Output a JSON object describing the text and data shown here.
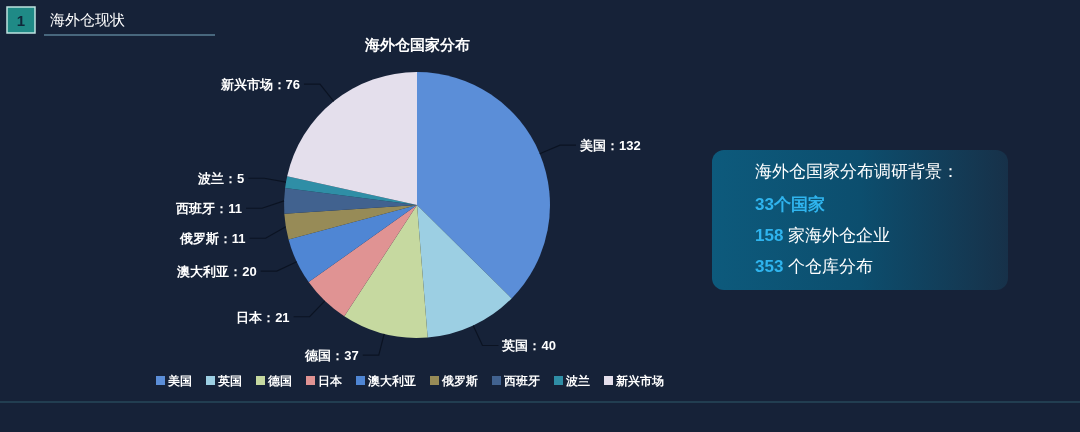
{
  "chart_data": [
    {
      "type": "pie",
      "title": "海外仓国家分布",
      "annotations": [
        "1",
        "海外仓现状"
      ],
      "categories": [
        "美国",
        "英国",
        "德国",
        "日本",
        "澳大利亚",
        "俄罗斯",
        "西班牙",
        "波兰",
        "新兴市场"
      ],
      "values": [
        132,
        40,
        37,
        21,
        20,
        11,
        11,
        5,
        76
      ],
      "colors": [
        "#5b8ed8",
        "#9ccfe3",
        "#c6d9a0",
        "#e09393",
        "#4f86d4",
        "#978b57",
        "#41628f",
        "#2f8ea6",
        "#e4dfec"
      ],
      "value_labels": [
        "美国：132",
        "英国：40",
        "德国：37",
        "日本：21",
        "澳大利亚：20",
        "俄罗斯：11",
        "西班牙：11",
        "波兰：5",
        "新兴市场：76"
      ],
      "legend": "bottom"
    },
    {
      "type": "other",
      "title": "海外仓国家分布调研背景：",
      "annotations": [
        "33个国家",
        "158 家海外仓企业",
        "353 个仓库分布"
      ]
    }
  ]
}
